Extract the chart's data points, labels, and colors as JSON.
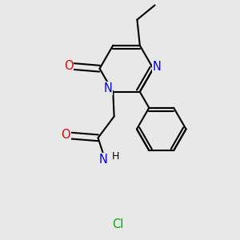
{
  "bg_color": "#e8e8e8",
  "bond_color": "#000000",
  "bond_width": 1.5,
  "atom_colors": {
    "N": "#0000ee",
    "O": "#dd0000",
    "Cl": "#00aa00",
    "C": "#000000",
    "H": "#000000"
  },
  "font_size": 10.5
}
